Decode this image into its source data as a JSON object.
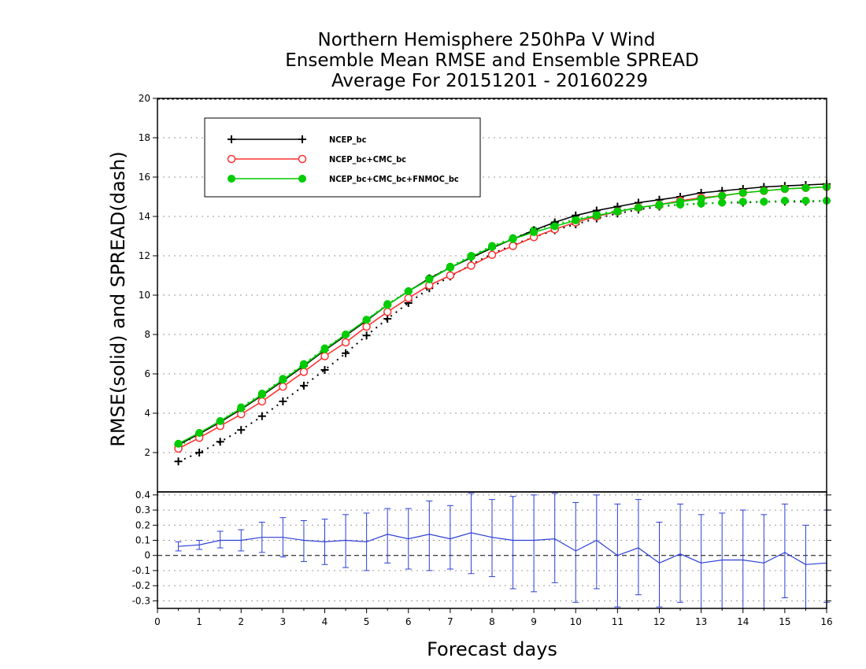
{
  "chart_data": [
    {
      "type": "line",
      "title": [
        "Northern Hemisphere 250hPa V Wind",
        "Ensemble Mean RMSE and Ensemble SPREAD",
        "Average For 20151201 - 20160229"
      ],
      "xlabel": "Forecast days",
      "ylabel": "RMSE(solid) and SPREAD(dash)",
      "xlim": [
        0,
        16
      ],
      "ylim": [
        0,
        20
      ],
      "xticks": [
        0,
        1,
        2,
        3,
        4,
        5,
        6,
        7,
        8,
        9,
        10,
        11,
        12,
        13,
        14,
        15,
        16
      ],
      "yticks": [
        2,
        4,
        6,
        8,
        10,
        12,
        14,
        16,
        18,
        20
      ],
      "grid": true,
      "legend_position": "top-left",
      "x": [
        0.5,
        1,
        1.5,
        2,
        2.5,
        3,
        3.5,
        4,
        4.5,
        5,
        5.5,
        6,
        6.5,
        7,
        7.5,
        8,
        8.5,
        9,
        9.5,
        10,
        10.5,
        11,
        11.5,
        12,
        12.5,
        13,
        13.5,
        14,
        14.5,
        15,
        15.5,
        16
      ],
      "series": [
        {
          "name": "NCEP_bc",
          "color": "#000000",
          "marker": "plus",
          "style": "solid",
          "values": [
            2.4,
            2.95,
            3.55,
            4.2,
            4.9,
            5.65,
            6.4,
            7.2,
            7.95,
            8.7,
            9.5,
            10.2,
            10.85,
            11.4,
            11.9,
            12.4,
            12.85,
            13.3,
            13.7,
            14.05,
            14.3,
            14.5,
            14.7,
            14.85,
            15.0,
            15.2,
            15.3,
            15.4,
            15.5,
            15.55,
            15.6,
            15.65
          ]
        },
        {
          "name": "NCEP_bc+CMC_bc",
          "color": "#ff3333",
          "marker": "open-circle",
          "style": "solid",
          "values": [
            2.2,
            2.75,
            3.35,
            3.95,
            4.6,
            5.35,
            6.1,
            6.9,
            7.6,
            8.4,
            9.15,
            9.85,
            10.5,
            11.0,
            11.5,
            12.05,
            12.5,
            12.95,
            13.35,
            13.7,
            14.0,
            14.25,
            14.45,
            14.6,
            14.8,
            14.95,
            15.05,
            15.2,
            15.3,
            15.4,
            15.45,
            15.5
          ]
        },
        {
          "name": "NCEP_bc+CMC_bc+FNMOC_bc",
          "color": "#00cc00",
          "marker": "filled-circle",
          "style": "solid",
          "values": [
            2.45,
            3.0,
            3.6,
            4.25,
            4.95,
            5.7,
            6.45,
            7.25,
            8.0,
            8.75,
            9.5,
            10.2,
            10.8,
            11.4,
            11.95,
            12.45,
            12.85,
            13.2,
            13.5,
            13.8,
            14.05,
            14.25,
            14.45,
            14.6,
            14.75,
            14.9,
            15.05,
            15.2,
            15.3,
            15.4,
            15.45,
            15.5
          ]
        },
        {
          "name": "",
          "color": "#000000",
          "marker": "plus",
          "style": "dotted",
          "values": [
            1.55,
            2.0,
            2.55,
            3.15,
            3.85,
            4.6,
            5.4,
            6.2,
            7.05,
            7.95,
            8.8,
            9.6,
            10.35,
            10.95,
            11.55,
            12.1,
            12.55,
            12.95,
            13.3,
            13.6,
            13.9,
            14.15,
            14.35,
            14.5,
            14.6,
            14.65,
            14.7,
            14.7,
            14.75,
            14.75,
            14.75,
            14.8
          ]
        },
        {
          "name": "",
          "color": "#00cc00",
          "marker": "filled-circle",
          "style": "dotted",
          "values": [
            2.3,
            2.95,
            3.6,
            4.3,
            5.0,
            5.75,
            6.5,
            7.3,
            8.0,
            8.75,
            9.55,
            10.2,
            10.85,
            11.45,
            12.0,
            12.5,
            12.9,
            13.3,
            13.6,
            13.85,
            14.1,
            14.3,
            14.45,
            14.55,
            14.6,
            14.65,
            14.7,
            14.75,
            14.75,
            14.8,
            14.8,
            14.8
          ]
        }
      ]
    },
    {
      "type": "line",
      "xlabel": "",
      "ylabel": "",
      "xlim": [
        0,
        16
      ],
      "ylim": [
        -0.35,
        0.42
      ],
      "yticks": [
        0.4,
        0.3,
        0.2,
        0.1,
        0,
        -0.1,
        -0.2,
        -0.3
      ],
      "ytick_labels": [
        "0.4",
        "0.3",
        "0.2",
        "0.1",
        "0",
        "-0.1",
        "-0.2",
        "-0.3"
      ],
      "reference_line": 0,
      "grid": true,
      "x": [
        0.5,
        1,
        1.5,
        2,
        2.5,
        3,
        3.5,
        4,
        4.5,
        5,
        5.5,
        6,
        6.5,
        7,
        7.5,
        8,
        8.5,
        9,
        9.5,
        10,
        10.5,
        11,
        11.5,
        12,
        12.5,
        13,
        13.5,
        14,
        14.5,
        15,
        15.5,
        16
      ],
      "series": [
        {
          "name": "",
          "color": "#2b3fd6",
          "values": [
            0.06,
            0.07,
            0.1,
            0.1,
            0.12,
            0.12,
            0.1,
            0.09,
            0.1,
            0.09,
            0.14,
            0.11,
            0.14,
            0.11,
            0.15,
            0.12,
            0.1,
            0.1,
            0.11,
            0.03,
            0.1,
            0.0,
            0.05,
            -0.05,
            0.01,
            -0.05,
            -0.03,
            -0.03,
            -0.05,
            0.02,
            -0.06,
            -0.05
          ],
          "error_low": [
            0.03,
            0.04,
            0.05,
            0.03,
            0.02,
            -0.01,
            -0.04,
            -0.06,
            -0.08,
            -0.1,
            -0.05,
            -0.09,
            -0.1,
            -0.09,
            -0.12,
            -0.14,
            -0.22,
            -0.24,
            -0.18,
            -0.31,
            -0.22,
            -0.34,
            -0.26,
            -0.34,
            -0.31,
            -0.35,
            -0.35,
            -0.35,
            -0.36,
            -0.28,
            -0.35,
            -0.31
          ],
          "error_high": [
            0.09,
            0.1,
            0.16,
            0.17,
            0.22,
            0.25,
            0.23,
            0.24,
            0.27,
            0.28,
            0.31,
            0.31,
            0.36,
            0.33,
            0.41,
            0.37,
            0.39,
            0.4,
            0.41,
            0.35,
            0.4,
            0.34,
            0.37,
            0.22,
            0.34,
            0.27,
            0.28,
            0.3,
            0.27,
            0.34,
            0.2,
            0.3
          ]
        }
      ]
    }
  ]
}
